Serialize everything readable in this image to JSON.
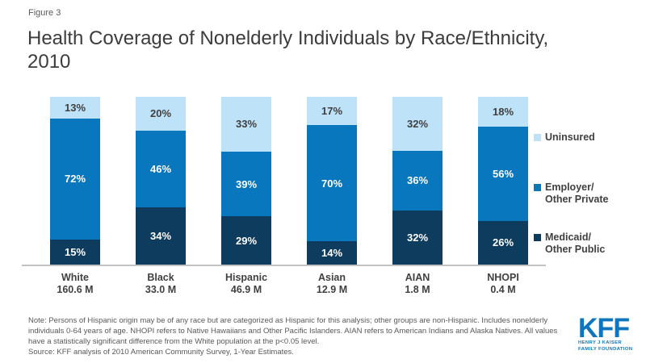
{
  "figure_label": "Figure 3",
  "title": "Health Coverage of Nonelderly Individuals by Race/Ethnicity, 2010",
  "title_line1": "Health Coverage of Nonelderly Individuals by Race/Ethnicity,",
  "title_line2": "2010",
  "chart_data": {
    "type": "bar",
    "stacked": true,
    "orientation": "vertical",
    "value_suffix": "%",
    "ylim": [
      0,
      100
    ],
    "grid": false,
    "legend_position": "right",
    "categories": [
      {
        "label": "White",
        "population": "160.6 M"
      },
      {
        "label": "Black",
        "population": "33.0 M"
      },
      {
        "label": "Hispanic",
        "population": "46.9 M"
      },
      {
        "label": "Asian",
        "population": "12.9 M"
      },
      {
        "label": "AIAN",
        "population": "1.8 M"
      },
      {
        "label": "NHOPI",
        "population": "0.4 M"
      }
    ],
    "series": [
      {
        "name": "Uninsured",
        "legend_lines": [
          "Uninsured"
        ],
        "color": "#bee2f8",
        "label_color": "#3f3f3f",
        "values": [
          13,
          20,
          33,
          17,
          32,
          18
        ]
      },
      {
        "name": "Employer/Other Private",
        "legend_lines": [
          "Employer/",
          "Other Private"
        ],
        "color": "#0877bd",
        "label_color": "#ffffff",
        "values": [
          72,
          46,
          39,
          70,
          36,
          56
        ]
      },
      {
        "name": "Medicaid/Other Public",
        "legend_lines": [
          "Medicaid/",
          "Other Public"
        ],
        "color": "#0e3c5f",
        "label_color": "#ffffff",
        "values": [
          15,
          34,
          29,
          14,
          32,
          26
        ]
      }
    ]
  },
  "note": "Note: Persons of Hispanic origin may be of any race but are categorized as Hispanic for this analysis; other groups are non-Hispanic. Includes nonelderly individuals 0-64 years of age. NHOPI refers to Native Hawaiians and Other Pacific Islanders. AIAN refers to American Indians and Alaska Natives. All values have a statistically significant difference from the White population at the p<0.05 level.",
  "source": "Source: KFF analysis of 2010 American Community Survey, 1-Year Estimates.",
  "logo": {
    "text": "KFF",
    "tagline_line1": "HENRY J KAISER",
    "tagline_line2": "FAMILY FOUNDATION",
    "color": "#0f75bc"
  }
}
